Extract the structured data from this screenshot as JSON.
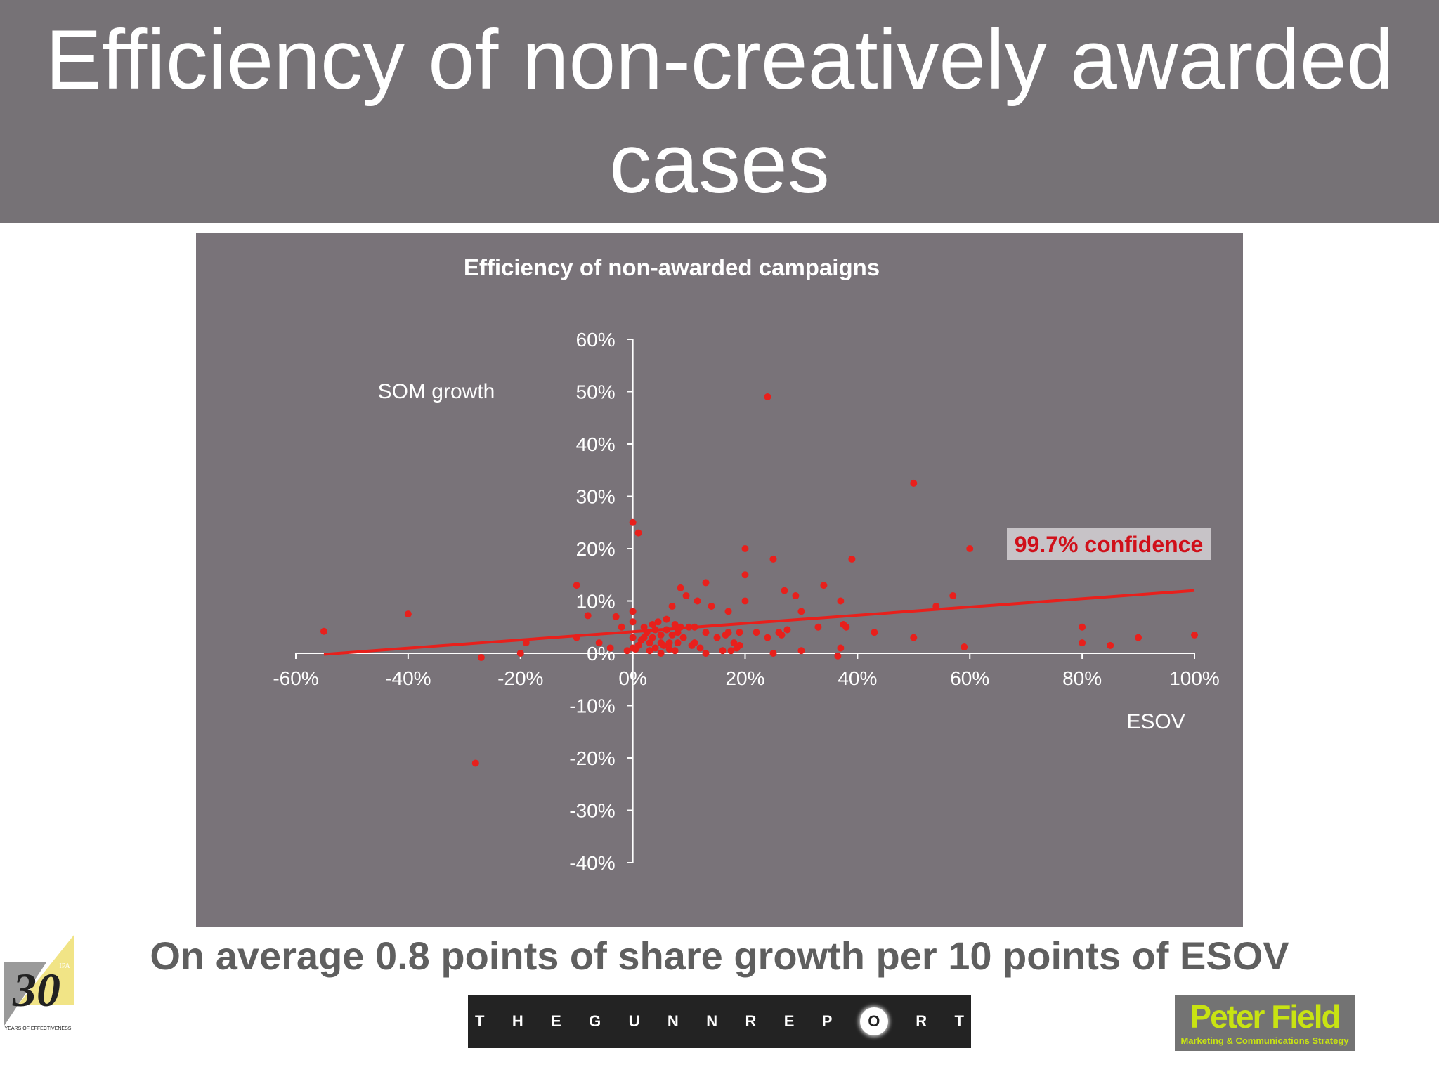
{
  "slide": {
    "title_line1": "Efficiency of non-creatively awarded",
    "title_line2": "cases",
    "tagline": "On average 0.8 points of share growth per 10 points of ESOV"
  },
  "logos": {
    "thirty": {
      "number": "30",
      "caption": "YEARS OF EFFECTIVENESS",
      "badge": "IPA"
    },
    "gunn": {
      "letters": [
        "T",
        "H",
        "E",
        "G",
        "U",
        "N",
        "N",
        "R",
        "E",
        "P",
        "O",
        "R",
        "T"
      ]
    },
    "peter_field": {
      "name": "Peter Field",
      "subtitle": "Marketing & Communications Strategy"
    }
  },
  "colors": {
    "title_bg": "#767276",
    "panel_bg": "#797379",
    "marker": "#e8201c",
    "trendline": "#e8201c",
    "annotation_text": "#d0101a",
    "annotation_bg": "#c7c3c7",
    "logo_green": "#c8e312"
  },
  "chart_data": {
    "type": "scatter",
    "title": "Efficiency of non-awarded campaigns",
    "xlabel": "ESOV",
    "ylabel": "SOM growth",
    "xlim": [
      -60,
      100
    ],
    "ylim": [
      -40,
      60
    ],
    "x_ticks": [
      -60,
      -40,
      -20,
      0,
      20,
      40,
      60,
      80,
      100
    ],
    "x_tick_labels": [
      "-60%",
      "-40%",
      "-20%",
      "0%",
      "20%",
      "40%",
      "60%",
      "80%",
      "100%"
    ],
    "y_ticks": [
      60,
      50,
      40,
      30,
      20,
      10,
      0,
      -10,
      -20,
      -30,
      -40
    ],
    "y_tick_labels": [
      "60%",
      "50%",
      "40%",
      "30%",
      "20%",
      "10%",
      "0%",
      "-10%",
      "-20%",
      "-30%",
      "-40%"
    ],
    "annotation": "99.7% confidence",
    "grid": false,
    "trendline": {
      "x": [
        -55,
        100
      ],
      "y": [
        -0.2,
        12
      ]
    },
    "series": [
      {
        "name": "Non-awarded campaigns",
        "points": [
          [
            -55,
            4.2
          ],
          [
            -40,
            7.5
          ],
          [
            -28,
            -21
          ],
          [
            -27,
            -0.8
          ],
          [
            -20,
            0
          ],
          [
            -19,
            2
          ],
          [
            -10,
            13
          ],
          [
            -10,
            3
          ],
          [
            -8,
            7.2
          ],
          [
            -6,
            2
          ],
          [
            0,
            25
          ],
          [
            1,
            23
          ],
          [
            -4,
            1
          ],
          [
            -3,
            7
          ],
          [
            -2,
            5
          ],
          [
            -1,
            0.5
          ],
          [
            0,
            3
          ],
          [
            0,
            1
          ],
          [
            0,
            8
          ],
          [
            0,
            6
          ],
          [
            0.5,
            0.8
          ],
          [
            1,
            1.5
          ],
          [
            1.5,
            2.5
          ],
          [
            2,
            3
          ],
          [
            2,
            5
          ],
          [
            2.5,
            4
          ],
          [
            3,
            2
          ],
          [
            3,
            0.5
          ],
          [
            3.5,
            5.5
          ],
          [
            3.5,
            3
          ],
          [
            4,
            4.5
          ],
          [
            4,
            1
          ],
          [
            4.5,
            6
          ],
          [
            5,
            2
          ],
          [
            5,
            3.5
          ],
          [
            5,
            0
          ],
          [
            5.5,
            1.5
          ],
          [
            6,
            4.5
          ],
          [
            6,
            6.5
          ],
          [
            6.5,
            2
          ],
          [
            6.5,
            0.8
          ],
          [
            7,
            9
          ],
          [
            7,
            3.5
          ],
          [
            7.5,
            5.5
          ],
          [
            7.5,
            0.5
          ],
          [
            8,
            4
          ],
          [
            8,
            2
          ],
          [
            8.5,
            5
          ],
          [
            8.5,
            12.5
          ],
          [
            9,
            3
          ],
          [
            9.5,
            11
          ],
          [
            10,
            5
          ],
          [
            10.5,
            1.5
          ],
          [
            11,
            5
          ],
          [
            11,
            2
          ],
          [
            11.5,
            10
          ],
          [
            12,
            1
          ],
          [
            13,
            13.5
          ],
          [
            13,
            4
          ],
          [
            13,
            0
          ],
          [
            14,
            9
          ],
          [
            15,
            3
          ],
          [
            16,
            0.5
          ],
          [
            16.5,
            3.5
          ],
          [
            17,
            8
          ],
          [
            17,
            4
          ],
          [
            17.5,
            0.5
          ],
          [
            18,
            2
          ],
          [
            18.5,
            1
          ],
          [
            19,
            1.5
          ],
          [
            19,
            4
          ],
          [
            20,
            20
          ],
          [
            20,
            15
          ],
          [
            20,
            10
          ],
          [
            22,
            4
          ],
          [
            24,
            3
          ],
          [
            24,
            49
          ],
          [
            25,
            18
          ],
          [
            25,
            0
          ],
          [
            26,
            4
          ],
          [
            26.5,
            3.5
          ],
          [
            27,
            12
          ],
          [
            27.5,
            4.5
          ],
          [
            29,
            11
          ],
          [
            30,
            8
          ],
          [
            30,
            0.5
          ],
          [
            33,
            5
          ],
          [
            34,
            13
          ],
          [
            36.5,
            -0.5
          ],
          [
            37,
            10
          ],
          [
            37,
            1
          ],
          [
            37.5,
            5.5
          ],
          [
            38,
            5
          ],
          [
            39,
            18
          ],
          [
            43,
            4
          ],
          [
            50,
            32.5
          ],
          [
            50,
            3
          ],
          [
            54,
            9
          ],
          [
            57,
            11
          ],
          [
            59,
            1.2
          ],
          [
            60,
            20
          ],
          [
            80,
            5
          ],
          [
            80,
            2
          ],
          [
            85,
            1.5
          ],
          [
            90,
            3
          ],
          [
            100,
            3.5
          ]
        ]
      }
    ]
  }
}
